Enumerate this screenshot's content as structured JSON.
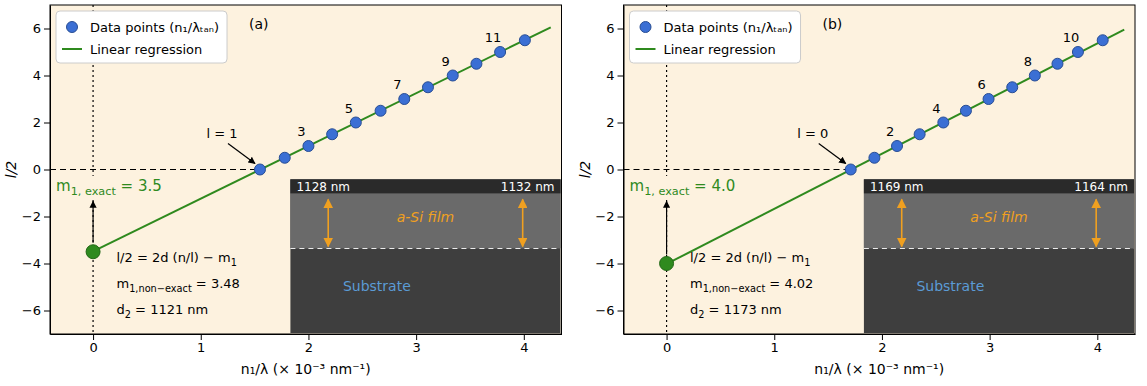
{
  "chart_data": [
    {
      "type": "scatter",
      "panel_label": "(a)",
      "x_label": "n₁/λ (× 10⁻³ nm⁻¹)",
      "y_label": "l/2",
      "xlim": [
        -0.4,
        4.35
      ],
      "ylim": [
        -7,
        7
      ],
      "xticks": [
        0,
        1,
        2,
        3,
        4
      ],
      "yticks": [
        {
          "value": -6,
          "label": "−6"
        },
        {
          "value": -4,
          "label": "−4"
        },
        {
          "value": -2,
          "label": "−2"
        },
        0,
        2,
        4,
        6
      ],
      "legend": "upper left",
      "series": [
        {
          "name": "Data points (n₁/λₜₐₙ)",
          "type": "scatter",
          "marker": "circle",
          "color": "#3b6fd4",
          "x": [
            1.55,
            1.78,
            2.0,
            2.22,
            2.44,
            2.67,
            2.89,
            3.11,
            3.34,
            3.56,
            3.78,
            4.01
          ],
          "values": [
            0,
            0.5,
            1,
            1.5,
            2,
            2.5,
            3,
            3.5,
            4,
            4.5,
            5,
            5.5
          ],
          "point_labels": [
            "l = 1",
            null,
            "3",
            null,
            "5",
            null,
            "7",
            null,
            "9",
            null,
            "11",
            null
          ]
        },
        {
          "name": "Linear regression",
          "type": "line",
          "line_style": "solid",
          "color": "#2f8a1e",
          "x": [
            0,
            4.25
          ],
          "values": [
            -3.48,
            6.05
          ]
        }
      ],
      "reference_lines": {
        "x": 0,
        "y": 0
      },
      "intercept_point": {
        "x": 0,
        "y": -3.5,
        "color": "#2f8a1e"
      },
      "intercept_label": [
        "m",
        "1, exact",
        " = 3.5"
      ],
      "fit_text": [
        [
          "l/2 = 2d (n/l) − m",
          "1"
        ],
        [
          "m",
          "1,non−exact",
          " = 3.48"
        ],
        [
          "d",
          "2",
          " = 1121 nm"
        ]
      ],
      "inset": {
        "thickness_left": "1128 nm",
        "thickness_right": "1132 nm",
        "film": "a-Si film",
        "substrate": "Substrate"
      }
    },
    {
      "type": "scatter",
      "panel_label": "(b)",
      "x_label": "n₁/λ (× 10⁻³ nm⁻¹)",
      "y_label": "l/2",
      "xlim": [
        -0.4,
        4.35
      ],
      "ylim": [
        -7,
        7
      ],
      "xticks": [
        0,
        1,
        2,
        3,
        4
      ],
      "yticks": [
        {
          "value": -6,
          "label": "−6"
        },
        {
          "value": -4,
          "label": "−4"
        },
        {
          "value": -2,
          "label": "−2"
        },
        0,
        2,
        4,
        6
      ],
      "legend": "upper left",
      "series": [
        {
          "name": "Data points (n₁/λₜₐₙ)",
          "type": "scatter",
          "marker": "circle",
          "color": "#3b6fd4",
          "x": [
            1.71,
            1.93,
            2.14,
            2.35,
            2.57,
            2.78,
            2.99,
            3.21,
            3.42,
            3.63,
            3.82,
            4.05
          ],
          "values": [
            0,
            0.5,
            1,
            1.5,
            2,
            2.5,
            3,
            3.5,
            4,
            4.5,
            5,
            5.5
          ],
          "point_labels": [
            "l = 0",
            null,
            "2",
            null,
            "4",
            null,
            "6",
            null,
            "8",
            null,
            "10",
            null
          ]
        },
        {
          "name": "Linear regression",
          "type": "line",
          "line_style": "solid",
          "color": "#2f8a1e",
          "x": [
            0,
            4.25
          ],
          "values": [
            -4.02,
            5.95
          ]
        }
      ],
      "reference_lines": {
        "x": 0,
        "y": 0
      },
      "intercept_point": {
        "x": 0,
        "y": -4.0,
        "color": "#2f8a1e"
      },
      "intercept_label": [
        "m",
        "1, exact",
        " = 4.0"
      ],
      "fit_text": [
        [
          "l/2 = 2d (n/l) − m",
          "1"
        ],
        [
          "m",
          "1,non−exact",
          " = 4.02"
        ],
        [
          "d",
          "2",
          " = 1173 nm"
        ]
      ],
      "inset": {
        "thickness_left": "1169 nm",
        "thickness_right": "1164 nm",
        "film": "a-Si film",
        "substrate": "Substrate"
      }
    }
  ]
}
